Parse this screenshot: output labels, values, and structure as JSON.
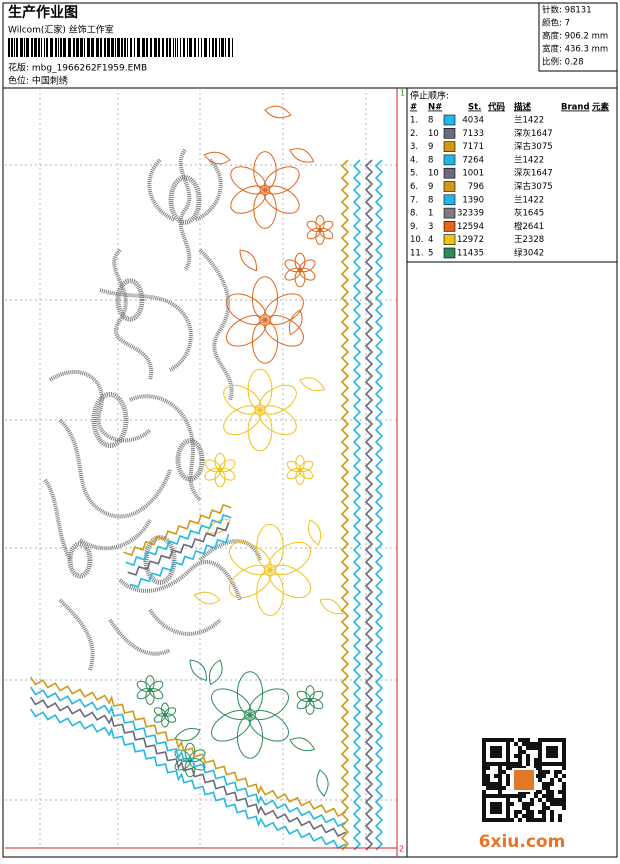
{
  "header": {
    "title": "生产作业图",
    "company": "Wilcom(汇家) 丝饰工作室",
    "pattern": "花版:  mbg_1966262F1959.EMB",
    "colorway": "色位:  中国刺绣"
  },
  "info": [
    "针数:  98131",
    "颜色:  7",
    "高度:  906.2 mm",
    "宽度:  436.3 mm",
    "比例:  0.28"
  ],
  "table": {
    "title": "停止顺序:",
    "columns": [
      "#",
      "N#",
      "St.",
      "代码",
      "描述",
      "Brand",
      "元素"
    ],
    "rows": [
      {
        "no": "1.",
        "needle": "8",
        "color": "#22b8e6",
        "code": "4034",
        "desc": "兰1422"
      },
      {
        "no": "2.",
        "needle": "10",
        "color": "#6a6a7c",
        "code": "7133",
        "desc": "深灰1647"
      },
      {
        "no": "3.",
        "needle": "9",
        "color": "#cf9a18",
        "code": "7171",
        "desc": "深古3075"
      },
      {
        "no": "4.",
        "needle": "8",
        "color": "#22b8e6",
        "code": "7264",
        "desc": "兰1422"
      },
      {
        "no": "5.",
        "needle": "10",
        "color": "#6a6a7c",
        "code": "1001",
        "desc": "深灰1647"
      },
      {
        "no": "6.",
        "needle": "9",
        "color": "#cf9a18",
        "code": "796",
        "desc": "深古3075"
      },
      {
        "no": "7.",
        "needle": "8",
        "color": "#22b8e6",
        "code": "1390",
        "desc": "兰1422"
      },
      {
        "no": "8.",
        "needle": "1",
        "color": "#7d7d7d",
        "code": "32339",
        "desc": "灰1645"
      },
      {
        "no": "9.",
        "needle": "3",
        "color": "#e0661c",
        "code": "12594",
        "desc": "橙2641"
      },
      {
        "no": "10.",
        "needle": "4",
        "color": "#f2c21a",
        "code": "12972",
        "desc": "王2328"
      },
      {
        "no": "11.",
        "needle": "5",
        "color": "#2e8b57",
        "code": "11435",
        "desc": "绿3042"
      }
    ]
  },
  "frame": {
    "top_right": "1",
    "bottom_right": "2"
  },
  "watermark": "6xiu.com"
}
